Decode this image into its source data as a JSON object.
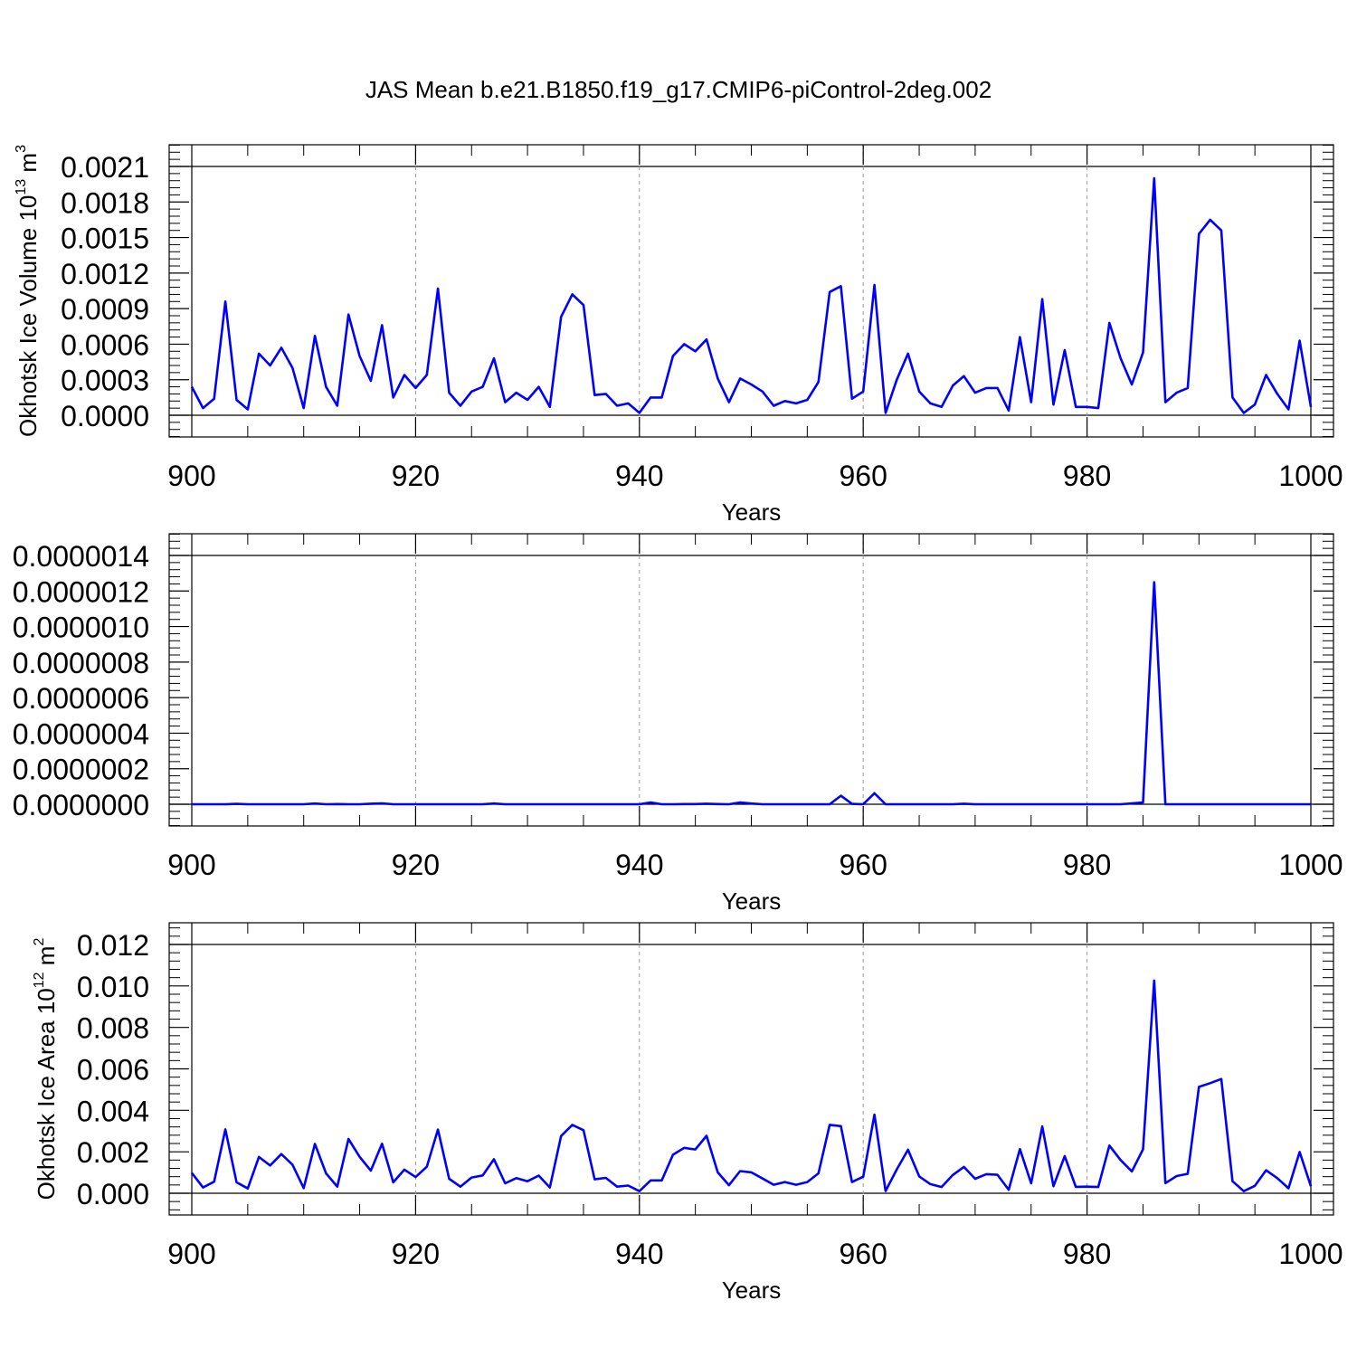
{
  "title": "JAS Mean b.e21.B1850.f19_g17.CMIP6-piControl-2deg.002",
  "colors": {
    "line": "#0000ff",
    "axis": "#000000",
    "grid": "#999999"
  },
  "chart_data": [
    {
      "type": "line",
      "ylabel": "Okhotsk Ice Volume 10",
      "ylabel_sup": "13",
      "ylabel_unit": "m",
      "ylabel_unit_sup": "3",
      "xlabel": "Years",
      "xlim": [
        900,
        1000
      ],
      "ylim": [
        0.0,
        0.0021
      ],
      "xticks": [
        "900",
        "920",
        "940",
        "960",
        "980",
        "1000"
      ],
      "yticks": [
        "0.0000",
        "0.0003",
        "0.0006",
        "0.0009",
        "0.0012",
        "0.0015",
        "0.0018",
        "0.0021"
      ],
      "grid": "vertical dashed at major x ticks",
      "x": [
        900,
        901,
        902,
        903,
        904,
        905,
        906,
        907,
        908,
        909,
        910,
        911,
        912,
        913,
        914,
        915,
        916,
        917,
        918,
        919,
        920,
        921,
        922,
        923,
        924,
        925,
        926,
        927,
        928,
        929,
        930,
        931,
        932,
        933,
        934,
        935,
        936,
        937,
        938,
        939,
        940,
        941,
        942,
        943,
        944,
        945,
        946,
        947,
        948,
        949,
        950,
        951,
        952,
        953,
        954,
        955,
        956,
        957,
        958,
        959,
        960,
        961,
        962,
        963,
        964,
        965,
        966,
        967,
        968,
        969,
        970,
        971,
        972,
        973,
        974,
        975,
        976,
        977,
        978,
        979,
        980,
        981,
        982,
        983,
        984,
        985,
        986,
        987,
        988,
        989,
        990,
        991,
        992,
        993,
        994,
        995,
        996,
        997,
        998,
        999,
        1000
      ],
      "values": [
        0.00024,
        6e-05,
        0.00014,
        0.00096,
        0.00013,
        5e-05,
        0.00052,
        0.00042,
        0.00057,
        0.0004,
        6e-05,
        0.00067,
        0.00024,
        8e-05,
        0.00085,
        0.0005,
        0.00029,
        0.00076,
        0.00015,
        0.00034,
        0.00023,
        0.00034,
        0.00107,
        0.00019,
        8e-05,
        0.0002,
        0.00024,
        0.00048,
        0.00011,
        0.00019,
        0.00013,
        0.00024,
        7e-05,
        0.00083,
        0.00102,
        0.00093,
        0.00017,
        0.00018,
        8e-05,
        0.0001,
        2e-05,
        0.00015,
        0.00015,
        0.0005,
        0.0006,
        0.00054,
        0.00064,
        0.00031,
        0.00011,
        0.00031,
        0.00026,
        0.0002,
        8e-05,
        0.00012,
        0.0001,
        0.00013,
        0.00028,
        0.00104,
        0.00109,
        0.00014,
        0.0002,
        0.0011,
        2e-05,
        0.0003,
        0.00052,
        0.0002,
        0.0001,
        7e-05,
        0.00025,
        0.00033,
        0.00019,
        0.00023,
        0.00023,
        4e-05,
        0.00066,
        0.00011,
        0.00098,
        9e-05,
        0.00055,
        7e-05,
        7e-05,
        6e-05,
        0.00078,
        0.00048,
        0.00026,
        0.00053,
        0.002,
        0.00011,
        0.00019,
        0.00023,
        0.00153,
        0.00165,
        0.00156,
        0.00015,
        2e-05,
        9e-05,
        0.00034,
        0.00018,
        5e-05,
        0.00063,
        7e-05
      ]
    },
    {
      "type": "line",
      "ylabel": "",
      "xlabel": "Years",
      "xlim": [
        900,
        1000
      ],
      "ylim": [
        0.0,
        1.4e-06
      ],
      "xticks": [
        "900",
        "920",
        "940",
        "960",
        "980",
        "1000"
      ],
      "yticks": [
        "0.0000000",
        "0.0000002",
        "0.0000004",
        "0.0000006",
        "0.0000008",
        "0.0000010",
        "0.0000012",
        "0.0000014"
      ],
      "grid": "vertical dashed at major x ticks",
      "x": [
        900,
        901,
        902,
        903,
        904,
        905,
        906,
        907,
        908,
        909,
        910,
        911,
        912,
        913,
        914,
        915,
        916,
        917,
        918,
        919,
        920,
        921,
        922,
        923,
        924,
        925,
        926,
        927,
        928,
        929,
        930,
        931,
        932,
        933,
        934,
        935,
        936,
        937,
        938,
        939,
        940,
        941,
        942,
        943,
        944,
        945,
        946,
        947,
        948,
        949,
        950,
        951,
        952,
        953,
        954,
        955,
        956,
        957,
        958,
        959,
        960,
        961,
        962,
        963,
        964,
        965,
        966,
        967,
        968,
        969,
        970,
        971,
        972,
        973,
        974,
        975,
        976,
        977,
        978,
        979,
        980,
        981,
        982,
        983,
        984,
        985,
        986,
        987,
        988,
        989,
        990,
        991,
        992,
        993,
        994,
        995,
        996,
        997,
        998,
        999,
        1000
      ],
      "values": [
        0,
        0,
        0,
        0,
        2e-09,
        0,
        0,
        0,
        0,
        0,
        0,
        4e-09,
        0,
        1e-09,
        0,
        0,
        3e-09,
        5e-09,
        0,
        0,
        0,
        0,
        0,
        0,
        0,
        0,
        0,
        4e-09,
        0,
        0,
        0,
        0,
        0,
        0,
        0,
        0,
        0,
        0,
        0,
        0,
        0,
        1e-08,
        0,
        0,
        1e-09,
        1e-09,
        3e-09,
        1e-09,
        0,
        1e-08,
        4e-09,
        0,
        0,
        0,
        0,
        0,
        0,
        0,
        4.8e-08,
        2e-09,
        0,
        6.2e-08,
        0,
        0,
        0,
        0,
        0,
        0,
        0,
        3e-09,
        0,
        0,
        0,
        0,
        0,
        0,
        0,
        0,
        0,
        0,
        0,
        0,
        0,
        0,
        5e-09,
        1e-08,
        1.25e-06,
        0,
        0,
        0,
        0,
        0,
        0,
        0,
        0,
        0,
        0,
        0,
        0,
        0,
        0
      ]
    },
    {
      "type": "line",
      "ylabel": "Okhotsk Ice Area 10",
      "ylabel_sup": "12",
      "ylabel_unit": "m",
      "ylabel_unit_sup": "2",
      "xlabel": "Years",
      "xlim": [
        900,
        1000
      ],
      "ylim": [
        0.0,
        0.012
      ],
      "xticks": [
        "900",
        "920",
        "940",
        "960",
        "980",
        "1000"
      ],
      "yticks": [
        "0.000",
        "0.002",
        "0.004",
        "0.006",
        "0.008",
        "0.010",
        "0.012"
      ],
      "grid": "vertical dashed at major x ticks",
      "x": [
        900,
        901,
        902,
        903,
        904,
        905,
        906,
        907,
        908,
        909,
        910,
        911,
        912,
        913,
        914,
        915,
        916,
        917,
        918,
        919,
        920,
        921,
        922,
        923,
        924,
        925,
        926,
        927,
        928,
        929,
        930,
        931,
        932,
        933,
        934,
        935,
        936,
        937,
        938,
        939,
        940,
        941,
        942,
        943,
        944,
        945,
        946,
        947,
        948,
        949,
        950,
        951,
        952,
        953,
        954,
        955,
        956,
        957,
        958,
        959,
        960,
        961,
        962,
        963,
        964,
        965,
        966,
        967,
        968,
        969,
        970,
        971,
        972,
        973,
        974,
        975,
        976,
        977,
        978,
        979,
        980,
        981,
        982,
        983,
        984,
        985,
        986,
        987,
        988,
        989,
        990,
        991,
        992,
        993,
        994,
        995,
        996,
        997,
        998,
        999,
        1000
      ],
      "values": [
        0.00098,
        0.00028,
        0.00056,
        0.00308,
        0.00053,
        0.00023,
        0.00175,
        0.00134,
        0.00189,
        0.00138,
        0.00025,
        0.00238,
        0.00096,
        0.00032,
        0.00262,
        0.00176,
        0.00109,
        0.00239,
        0.00053,
        0.00114,
        0.00078,
        0.00128,
        0.00307,
        0.0007,
        0.00032,
        0.00076,
        0.00086,
        0.00164,
        0.00048,
        0.00073,
        0.00058,
        0.00085,
        0.00028,
        0.00276,
        0.0033,
        0.00304,
        0.00067,
        0.00074,
        0.00032,
        0.00037,
        0.0001,
        0.00062,
        0.00062,
        0.00186,
        0.00219,
        0.00211,
        0.00277,
        0.00101,
        0.00039,
        0.00107,
        0.00101,
        0.00071,
        0.00041,
        0.00054,
        0.00041,
        0.00054,
        0.00096,
        0.0033,
        0.00324,
        0.00054,
        0.0008,
        0.00379,
        0.00011,
        0.00115,
        0.0021,
        0.00081,
        0.00044,
        0.0003,
        0.00088,
        0.00127,
        0.0007,
        0.00092,
        0.00089,
        0.00017,
        0.00213,
        0.00048,
        0.00322,
        0.00034,
        0.00179,
        0.00031,
        0.00032,
        0.0003,
        0.0023,
        0.0016,
        0.00105,
        0.00212,
        0.01026,
        0.00049,
        0.00083,
        0.00094,
        0.00513,
        0.00531,
        0.00551,
        0.00058,
        0.0001,
        0.00036,
        0.00111,
        0.00073,
        0.00024,
        0.00199,
        0.00034
      ]
    }
  ]
}
